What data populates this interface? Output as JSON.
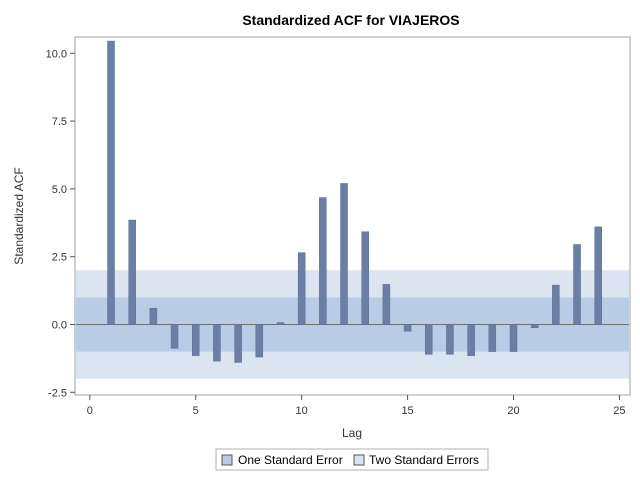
{
  "chart_data": {
    "type": "bar",
    "title": "Standardized ACF for VIAJEROS",
    "xlabel": "Lag",
    "ylabel": "Standardized ACF",
    "xlim": [
      -0.7,
      25.5
    ],
    "ylim": [
      -2.6,
      10.6
    ],
    "xticks": [
      "0",
      "5",
      "10",
      "15",
      "20",
      "25"
    ],
    "yticks": [
      "-2.5",
      "0.0",
      "2.5",
      "5.0",
      "7.5",
      "10.0"
    ],
    "one_standard_error": 1,
    "two_standard_errors": 2,
    "lags": [
      1,
      2,
      3,
      4,
      5,
      6,
      7,
      8,
      9,
      10,
      11,
      12,
      13,
      14,
      15,
      16,
      17,
      18,
      19,
      20,
      21,
      22,
      23,
      24
    ],
    "values": [
      10.45,
      3.85,
      0.6,
      -0.88,
      -1.15,
      -1.35,
      -1.4,
      -1.2,
      0.07,
      2.65,
      4.68,
      5.2,
      3.42,
      1.48,
      -0.25,
      -1.1,
      -1.1,
      -1.15,
      -1.0,
      -1.0,
      -0.12,
      1.45,
      2.95,
      3.6
    ],
    "legend": [
      {
        "label": "One Standard Error",
        "color": "#b8cde5"
      },
      {
        "label": "Two Standard Errors",
        "color": "#dbe5f2"
      }
    ],
    "legend_position": "bottom-center",
    "bar_color": "#6a7fa3",
    "grid": false
  }
}
